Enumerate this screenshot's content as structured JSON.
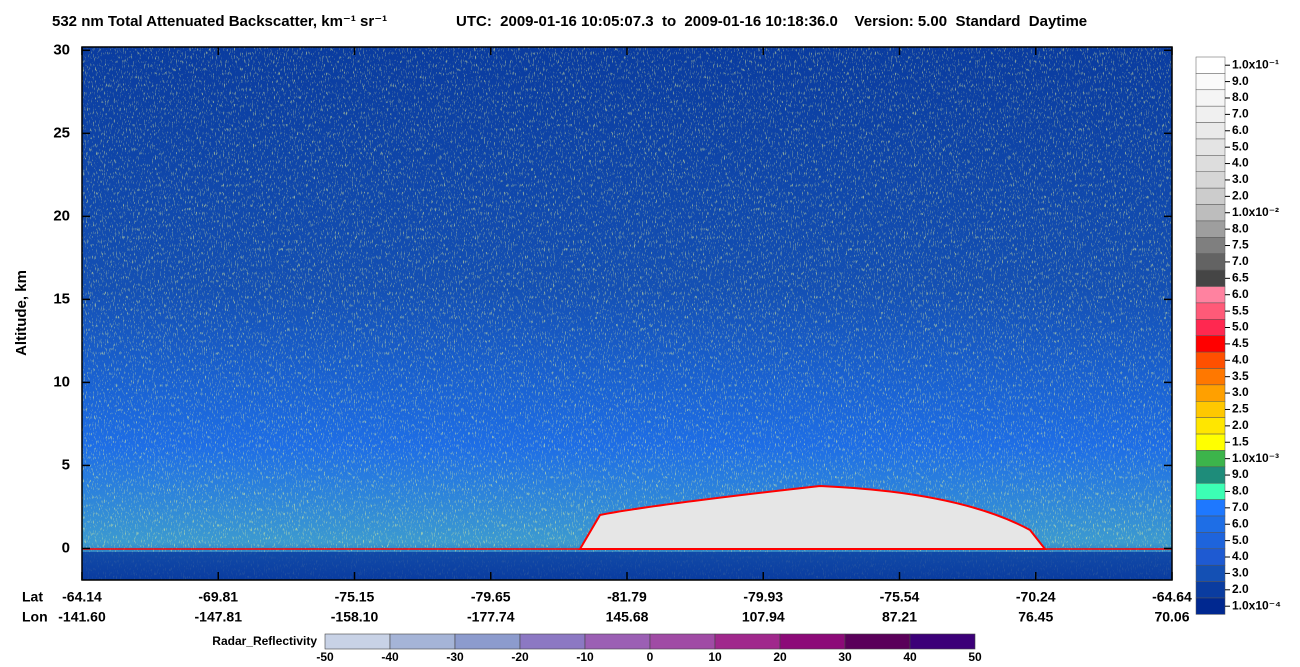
{
  "chart_data": {
    "type": "heatmap",
    "title": "532 nm Total Attenuated Backscatter, km⁻¹ sr⁻¹",
    "subtitle": "UTC:  2009-01-16 10:05:07.3  to  2009-01-16 10:18:36.0    Version: 5.00  Standard  Daytime",
    "ylabel": "Altitude, km",
    "ylim": [
      -1.9,
      30.2
    ],
    "yticks": [
      0,
      5,
      10,
      15,
      20,
      25,
      30
    ],
    "x_row_labels": [
      "Lat",
      "Lon"
    ],
    "lat": [
      "-64.14",
      "-69.81",
      "-75.15",
      "-79.65",
      "-81.79",
      "-79.93",
      "-75.54",
      "-70.24",
      "-64.64"
    ],
    "lon": [
      "-141.60",
      "-147.81",
      "-158.10",
      "-177.74",
      "145.68",
      "107.94",
      "87.21",
      "76.45",
      "70.06"
    ],
    "colorbar": {
      "labels": [
        "1.0x10⁻¹",
        "9.0",
        "8.0",
        "7.0",
        "6.0",
        "5.0",
        "4.0",
        "3.0",
        "2.0",
        "1.0x10⁻²",
        "8.0",
        "7.5",
        "7.0",
        "6.5",
        "6.0",
        "5.5",
        "5.0",
        "4.5",
        "4.0",
        "3.5",
        "3.0",
        "2.5",
        "2.0",
        "1.5",
        "1.0x10⁻³",
        "9.0",
        "8.0",
        "7.0",
        "6.0",
        "5.0",
        "4.0",
        "3.0",
        "2.0",
        "1.0x10⁻⁴"
      ],
      "colors": [
        "#ffffff",
        "#fafafa",
        "#f5f5f5",
        "#f0f0f0",
        "#eaeaea",
        "#e4e4e4",
        "#dddddd",
        "#d6d6d6",
        "#cccccc",
        "#bdbdbd",
        "#9e9e9e",
        "#7f7f7f",
        "#636363",
        "#454545",
        "#ff82a0",
        "#ff5a78",
        "#ff2850",
        "#ff0000",
        "#ff5000",
        "#ff7800",
        "#ffa000",
        "#ffc800",
        "#ffe600",
        "#ffff00",
        "#3cb44b",
        "#1e8c7a",
        "#3cffb4",
        "#1e78ff",
        "#1e6ee6",
        "#1e64dc",
        "#1e5ad2",
        "#1450b4",
        "#0a3ca0",
        "#002890"
      ]
    },
    "radar": {
      "label": "Radar_Reflectivity",
      "ticks": [
        -50,
        -40,
        -30,
        -20,
        -10,
        0,
        10,
        20,
        30,
        40,
        50
      ],
      "colors": [
        "#c8d2e6",
        "#a5b4d7",
        "#8c9bcd",
        "#8c78c3",
        "#9b5fb4",
        "#a04ba5",
        "#a0288c",
        "#8c0a78",
        "#5a005a",
        "#3c0078"
      ]
    }
  }
}
